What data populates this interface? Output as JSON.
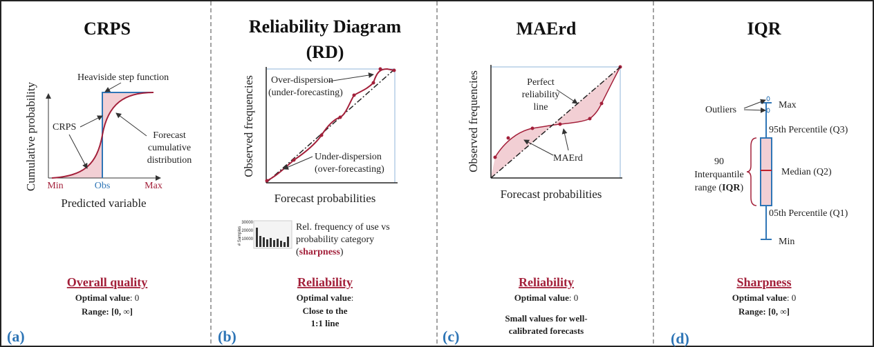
{
  "panels": [
    {
      "tag": "(a)",
      "title": "CRPS",
      "step": "Heaviside step function",
      "crps": "CRPS",
      "forecast": [
        "Forecast",
        "cumulative",
        "distribution"
      ],
      "y_axis": "Cumulative probability",
      "x_ticks": [
        "Min",
        "Obs",
        "Max"
      ],
      "x_axis": "Predicted variable",
      "property": "Overall quality",
      "optimal": [
        "Optimal value",
        ": 0"
      ],
      "range": "Range: [0, ∞]"
    },
    {
      "tag": "(b)",
      "title": [
        "Reliability Diagram",
        "(RD)"
      ],
      "over": [
        "Over-dispersion",
        "(under-forecasting)"
      ],
      "under": [
        "Under-dispersion",
        "(over-forecasting)"
      ],
      "y_axis": "Observed frequencies",
      "x_axis": "Forecast probabilities",
      "hist_ticks": [
        30000,
        20000,
        10000
      ],
      "hist_axis": "# Samples",
      "hist_note": [
        "Rel. frequency of use vs",
        "probability category",
        "(",
        "sharpness",
        ")"
      ],
      "property": "Reliability",
      "optimal": [
        "Optimal value",
        ":"
      ],
      "optimal_note": [
        "Close to the",
        "1:1 line"
      ]
    },
    {
      "tag": "(c)",
      "title": "MAErd",
      "perfect": [
        "Perfect",
        "reliability",
        "line"
      ],
      "area": "MAErd",
      "y_axis": "Observed frequencies",
      "x_axis": "Forecast probabilities",
      "property": "Reliability",
      "optimal": [
        "Optimal value",
        ": 0"
      ],
      "note": [
        "Small values for well-",
        "calibrated forecasts"
      ]
    },
    {
      "tag": "(d)",
      "title": "IQR",
      "outliers": "Outliers",
      "max": "Max",
      "q3": "95th Percentile (Q3)",
      "median": "Median (Q2)",
      "q1": "05th Percentile (Q1)",
      "min": "Min",
      "iqr": [
        "90",
        "Interquantile",
        "range (",
        "IQR",
        ")"
      ],
      "property": "Sharpness",
      "optimal": [
        "Optimal value",
        ": 0"
      ],
      "range": "Range: [0, ∞]"
    }
  ]
}
